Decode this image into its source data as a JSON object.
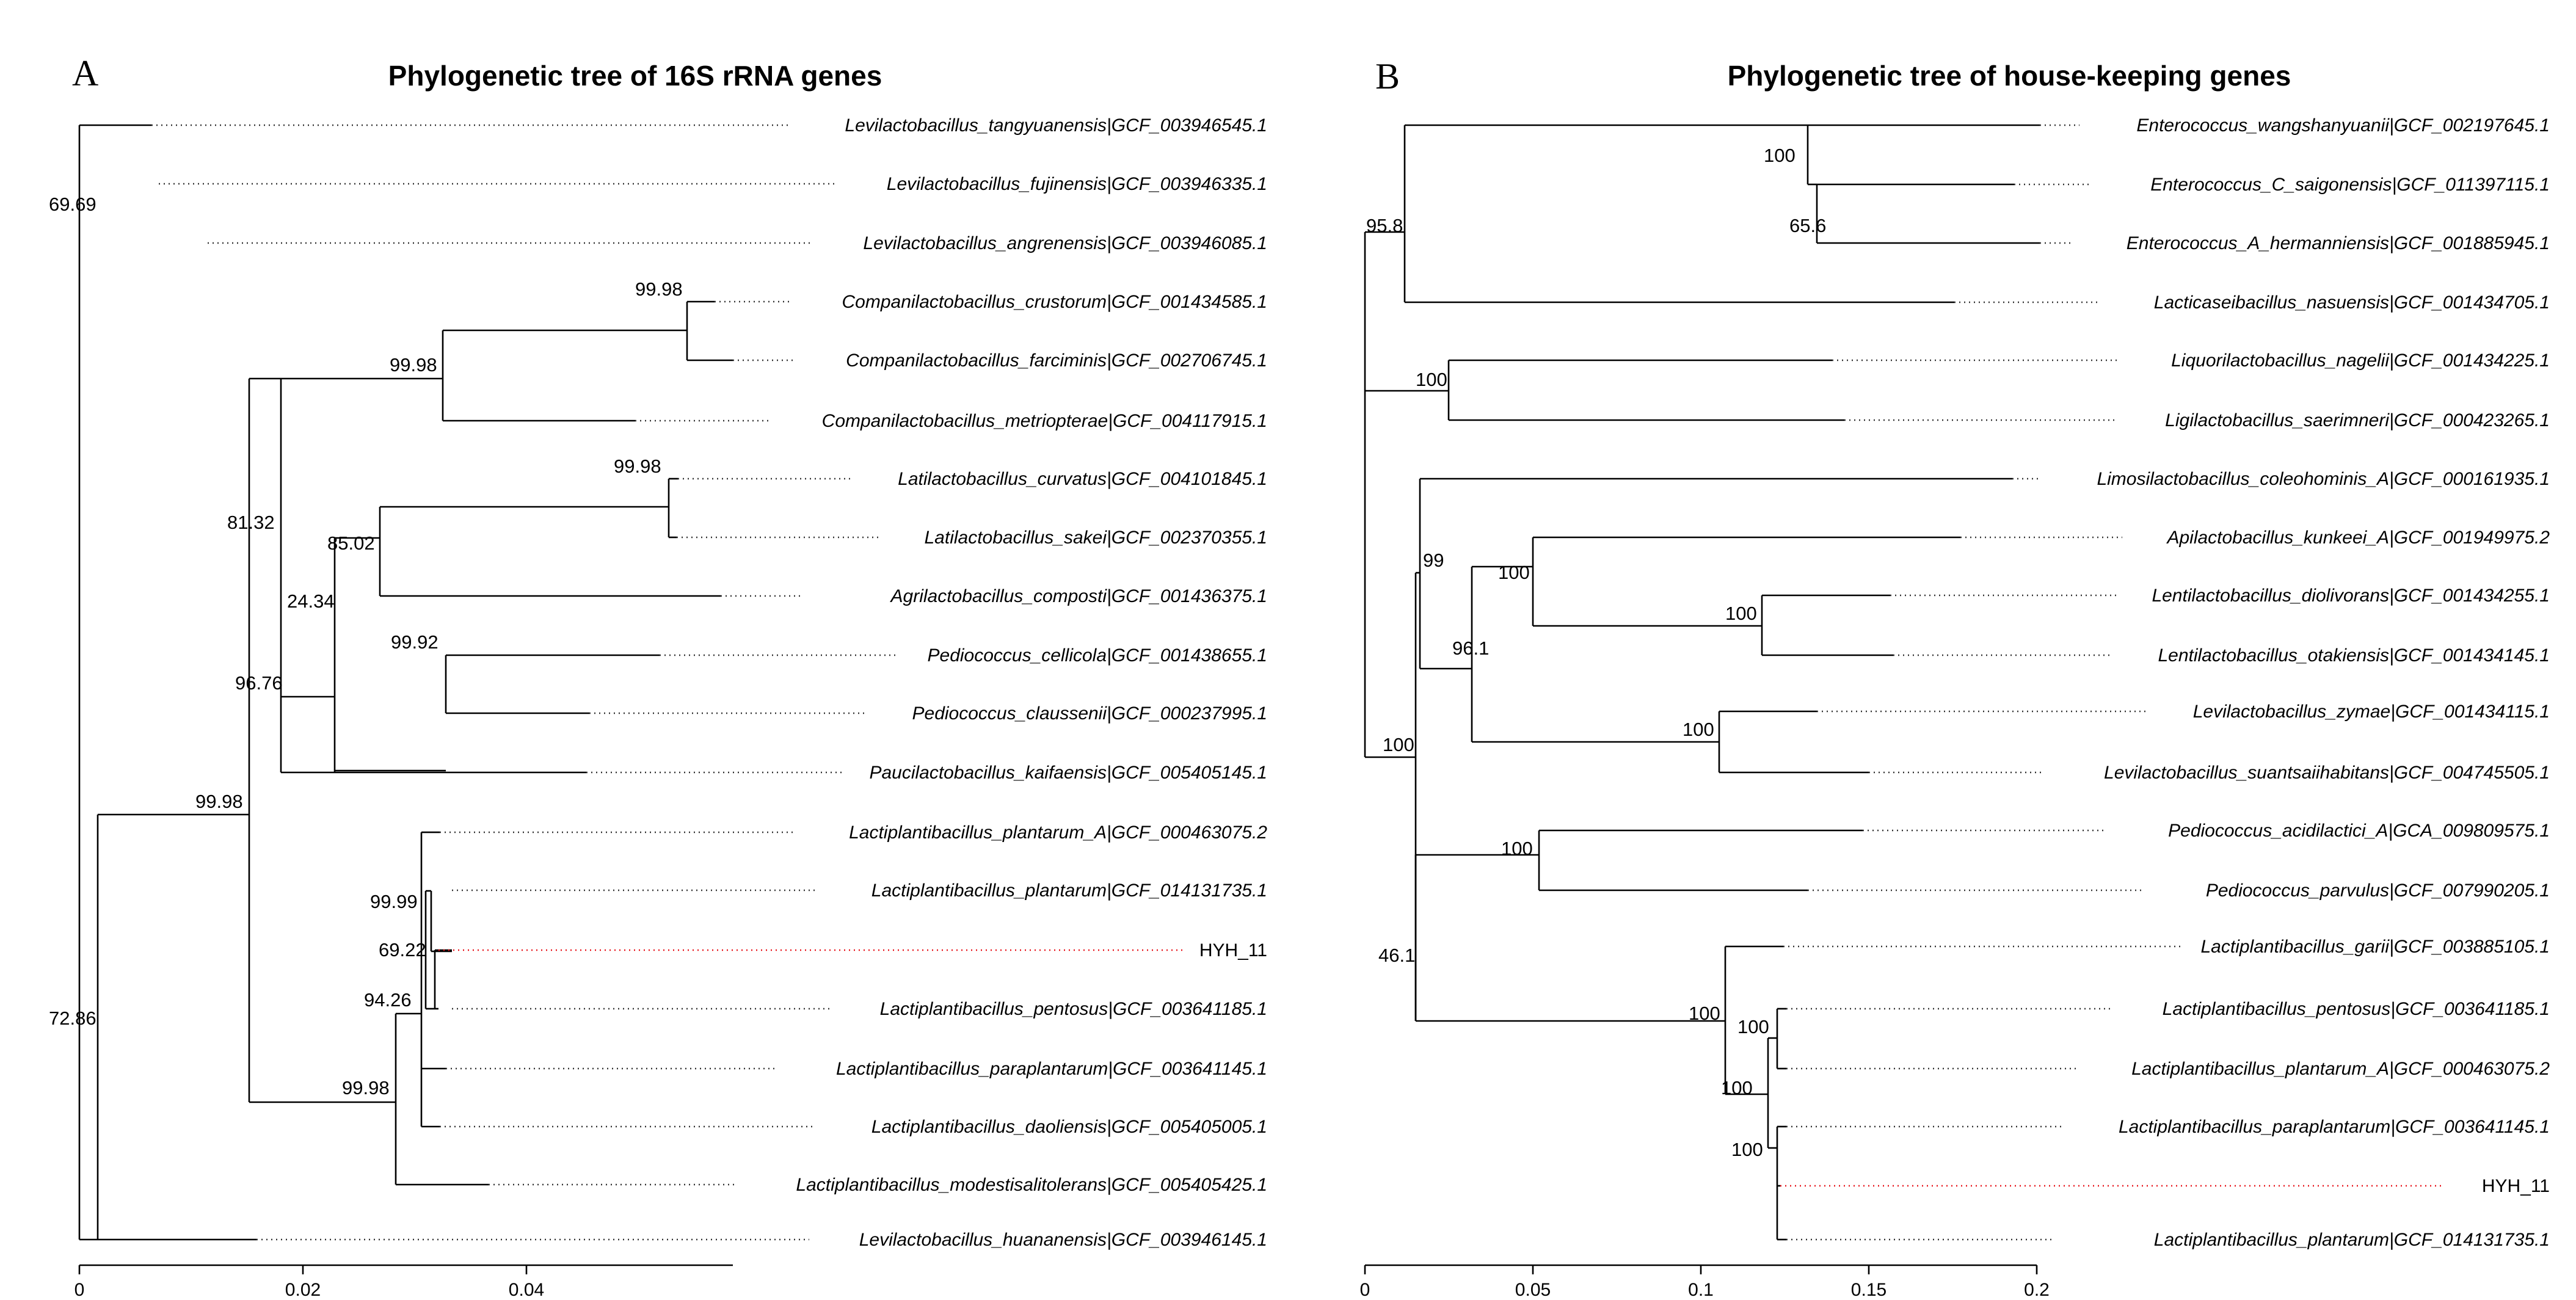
{
  "highlight_color": "#e8141b",
  "panels": [
    {
      "label": "A",
      "title": "Phylogenetic tree of 16S rRNA genes",
      "axis_ticks": [
        "0",
        "0.02",
        "0.04"
      ],
      "leaves": [
        "Levilactobacillus_tangyuanensis|GCF_003946545.1",
        "Levilactobacillus_fujinensis|GCF_003946335.1",
        "Levilactobacillus_angrenensis|GCF_003946085.1",
        "Companilactobacillus_crustorum|GCF_001434585.1",
        "Companilactobacillus_farciminis|GCF_002706745.1",
        "Companilactobacillus_metriopterae|GCF_004117915.1",
        "Latilactobacillus_curvatus|GCF_004101845.1",
        "Latilactobacillus_sakei|GCF_002370355.1",
        "Agrilactobacillus_composti|GCF_001436375.1",
        "Pediococcus_cellicola|GCF_001438655.1",
        "Pediococcus_claussenii|GCF_000237995.1",
        "Paucilactobacillus_kaifaensis|GCF_005405145.1",
        "Lactiplantibacillus_plantarum_A|GCF_000463075.2",
        "Lactiplantibacillus_plantarum|GCF_014131735.1",
        "HYH_11",
        "Lactiplantibacillus_pentosus|GCF_003641185.1",
        "Lactiplantibacillus_paraplantarum|GCF_003641145.1",
        "Lactiplantibacillus_daoliensis|GCF_005405005.1",
        "Lactiplantibacillus_modestisalitolerans|GCF_005405425.1",
        "Levilactobacillus_huananensis|GCF_003946145.1"
      ],
      "bootstrap": [
        "72.86",
        "69.69",
        "99.98",
        "81.32",
        "99.98",
        "99.98",
        "96.76",
        "85.02",
        "99.98",
        "24.34",
        "99.92",
        "99.98",
        "94.26",
        "99.99",
        "69.22"
      ]
    },
    {
      "label": "B",
      "title": "Phylogenetic tree of house-keeping genes",
      "axis_ticks": [
        "0",
        "0.05",
        "0.1",
        "0.15",
        "0.2"
      ],
      "leaves": [
        "Enterococcus_wangshanyuanii|GCF_002197645.1",
        "Enterococcus_C_saigonensis|GCF_011397115.1",
        "Enterococcus_A_hermanniensis|GCF_001885945.1",
        "Lacticaseibacillus_nasuensis|GCF_001434705.1",
        "Liquorilactobacillus_nagelii|GCF_001434225.1",
        "Ligilactobacillus_saerimneri|GCF_000423265.1",
        "Limosilactobacillus_coleohominis_A|GCF_000161935.1",
        "Apilactobacillus_kunkeei_A|GCF_001949975.2",
        "Lentilactobacillus_diolivorans|GCF_001434255.1",
        "Lentilactobacillus_otakiensis|GCF_001434145.1",
        "Levilactobacillus_zymae|GCF_001434115.1",
        "Levilactobacillus_suantsaiihabitans|GCF_004745505.1",
        "Pediococcus_acidilactici_A|GCA_009809575.1",
        "Pediococcus_parvulus|GCF_007990205.1",
        "Lactiplantibacillus_garii|GCF_003885105.1",
        "Lactiplantibacillus_pentosus|GCF_003641185.1",
        "Lactiplantibacillus_plantarum_A|GCF_000463075.2",
        "Lactiplantibacillus_paraplantarum|GCF_003641145.1",
        "HYH_11",
        "Lactiplantibacillus_plantarum|GCF_014131735.1"
      ],
      "bootstrap": [
        "95.8",
        "100",
        "65.6",
        "100",
        "100",
        "99",
        "100",
        "100",
        "96.1",
        "100",
        "46.1",
        "100",
        "100",
        "100",
        "100",
        "100"
      ]
    }
  ]
}
